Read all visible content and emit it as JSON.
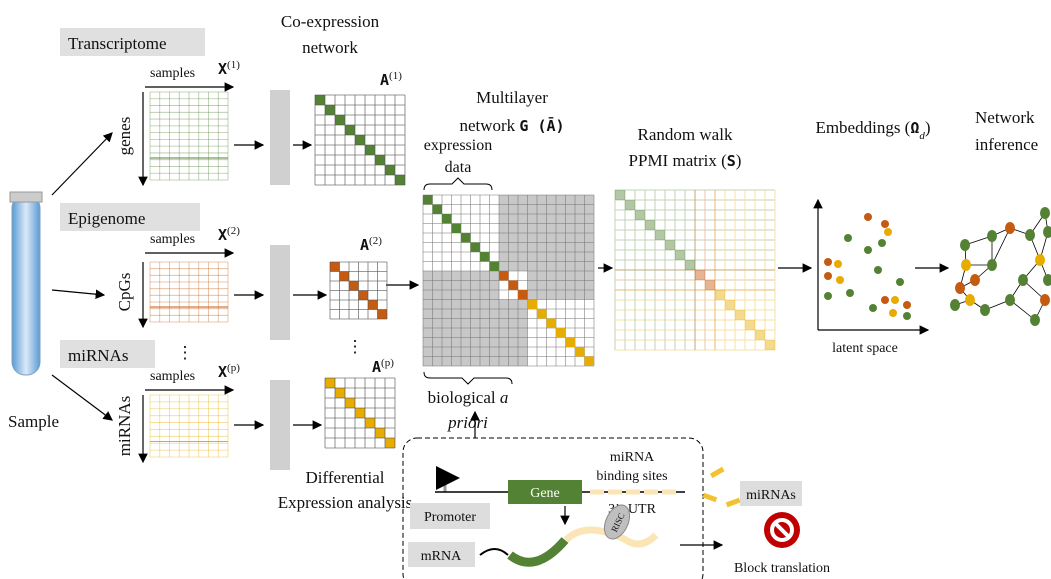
{
  "sample": "Sample",
  "coexpression": [
    "Co-expression",
    "network"
  ],
  "differential": [
    "Differential",
    "Expression analysis"
  ],
  "ellipsis": "⋮",
  "layers": [
    {
      "name": "Transcriptome",
      "columns": "samples",
      "rows": "genes",
      "data_matrix": {
        "symbol": "X",
        "sup": "(1)"
      },
      "network": {
        "symbol": "A",
        "sup": "(1)"
      },
      "color": "#548235"
    },
    {
      "name": "Epigenome",
      "columns": "samples",
      "rows": "CpGs",
      "data_matrix": {
        "symbol": "X",
        "sup": "(2)"
      },
      "network": {
        "symbol": "A",
        "sup": "(2)"
      },
      "color": "#c55a11"
    },
    {
      "name": "miRNAs",
      "columns": "samples",
      "rows": "miRNAs",
      "data_matrix": {
        "symbol": "X",
        "sup": "(p)"
      },
      "network": {
        "symbol": "A",
        "sup": "(p)"
      },
      "color": "#e6ac00"
    }
  ],
  "multilayer": {
    "line1": "Multilayer",
    "line2": "network ",
    "symbol": "G (Ā)"
  },
  "expression_data": [
    "expression",
    "data"
  ],
  "prior": {
    "line1": "biological ",
    "italic1": "a",
    "italic2": "priori"
  },
  "ppmi": {
    "line1": "Random walk",
    "line2": "PPMI matrix (",
    "symbol": "S",
    "close": ")"
  },
  "embeddings": {
    "text": "Embeddings (",
    "symbol": "Ω",
    "sub": "d",
    "close": ")"
  },
  "latent_space": "latent space",
  "inference": [
    "Network",
    "inference"
  ],
  "regulation": {
    "gene": "Gene",
    "binding_sites": [
      "miRNA",
      "binding sites"
    ],
    "utr": "3’- UTR",
    "promoter": "Promoter",
    "mirnas": "miRNAs",
    "mrna": "mRNA",
    "risc": "RISC",
    "block": "Block translation"
  }
}
